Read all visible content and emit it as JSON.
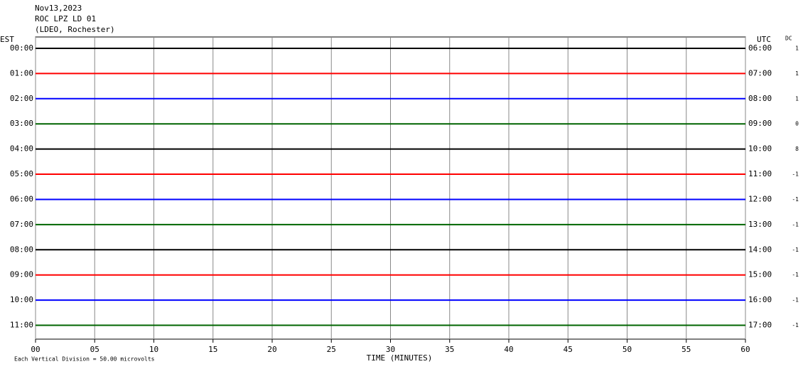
{
  "chart_data": {
    "type": "helicorder",
    "title": "Nov13,2023",
    "subtitle": "ROC LPZ LD 01",
    "station": "(LDEO, Rochester)",
    "left_label": "EST",
    "right_label": "UTC",
    "dc_label": "DC",
    "xlabel": "TIME (MINUTES)",
    "note": "Each Vertical Division =   50.00 microvolts",
    "xlim": [
      0,
      60
    ],
    "xticks": [
      {
        "value": 0,
        "label": "00"
      },
      {
        "value": 5,
        "label": "05"
      },
      10,
      15,
      20,
      25,
      30,
      35,
      40,
      45,
      50,
      55,
      60
    ],
    "grid": true,
    "rows": [
      {
        "est": "00:00",
        "utc": "06:00",
        "dc": 1,
        "color": "#000000"
      },
      {
        "est": "01:00",
        "utc": "07:00",
        "dc": 1,
        "color": "#ff0000"
      },
      {
        "est": "02:00",
        "utc": "08:00",
        "dc": 1,
        "color": "#0000ff"
      },
      {
        "est": "03:00",
        "utc": "09:00",
        "dc": 0,
        "color": "#006400"
      },
      {
        "est": "04:00",
        "utc": "10:00",
        "dc": 8,
        "color": "#000000"
      },
      {
        "est": "05:00",
        "utc": "11:00",
        "dc": -1,
        "color": "#ff0000"
      },
      {
        "est": "06:00",
        "utc": "12:00",
        "dc": -1,
        "color": "#0000ff"
      },
      {
        "est": "07:00",
        "utc": "13:00",
        "dc": -1,
        "color": "#006400"
      },
      {
        "est": "08:00",
        "utc": "14:00",
        "dc": -1,
        "color": "#000000"
      },
      {
        "est": "09:00",
        "utc": "15:00",
        "dc": -1,
        "color": "#ff0000"
      },
      {
        "est": "10:00",
        "utc": "16:00",
        "dc": -1,
        "color": "#0000ff"
      },
      {
        "est": "11:00",
        "utc": "17:00",
        "dc": -1,
        "color": "#006400"
      }
    ]
  }
}
